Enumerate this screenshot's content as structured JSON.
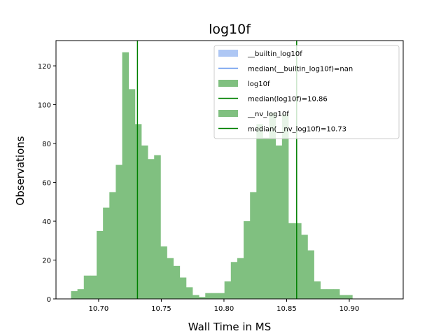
{
  "chart_data": {
    "type": "histogram",
    "title": "log10f",
    "xlabel": "Wall Time in MS",
    "ylabel": "Observations",
    "xlim": [
      10.666,
      10.943
    ],
    "ylim": [
      0,
      133
    ],
    "xticks": [
      10.7,
      10.75,
      10.8,
      10.85,
      10.9
    ],
    "xtick_labels": [
      "10.70",
      "10.75",
      "10.80",
      "10.85",
      "10.90"
    ],
    "yticks": [
      0,
      20,
      40,
      60,
      80,
      100,
      120
    ],
    "ytick_labels": [
      "0",
      "20",
      "40",
      "60",
      "80",
      "100",
      "120"
    ],
    "grid": false,
    "legend_position": "upper right",
    "colors": {
      "builtin_fill": "#aec7f4",
      "builtin_median": "#6495ed",
      "bars": "#80c080",
      "median_line": "#008000"
    },
    "bar_bins": {
      "start": 10.678,
      "width": 0.0051,
      "values": [
        4,
        5,
        12,
        12,
        35,
        47,
        55,
        69,
        127,
        108,
        90,
        79,
        72,
        74,
        27,
        21,
        17,
        11,
        6,
        2,
        1,
        3,
        3,
        3,
        9,
        19,
        21,
        40,
        55,
        90,
        83,
        96,
        79,
        95,
        39,
        39,
        33,
        25,
        9,
        5,
        5,
        5,
        2,
        2
      ]
    },
    "medians": [
      {
        "label": "median(log10f)=10.86",
        "value": 10.858
      },
      {
        "label": "median(__nv_log10f)=10.73",
        "value": 10.731
      }
    ],
    "legend": [
      {
        "kind": "patch",
        "color": "#aec7f4",
        "label": "__builtin_log10f"
      },
      {
        "kind": "line",
        "color": "#6495ed",
        "label": "median(__builtin_log10f)=nan"
      },
      {
        "kind": "patch",
        "color": "#80c080",
        "label": "log10f"
      },
      {
        "kind": "line",
        "color": "#008000",
        "label": "median(log10f)=10.86"
      },
      {
        "kind": "patch",
        "color": "#80c080",
        "label": "__nv_log10f"
      },
      {
        "kind": "line",
        "color": "#008000",
        "label": "median(__nv_log10f)=10.73"
      }
    ]
  }
}
